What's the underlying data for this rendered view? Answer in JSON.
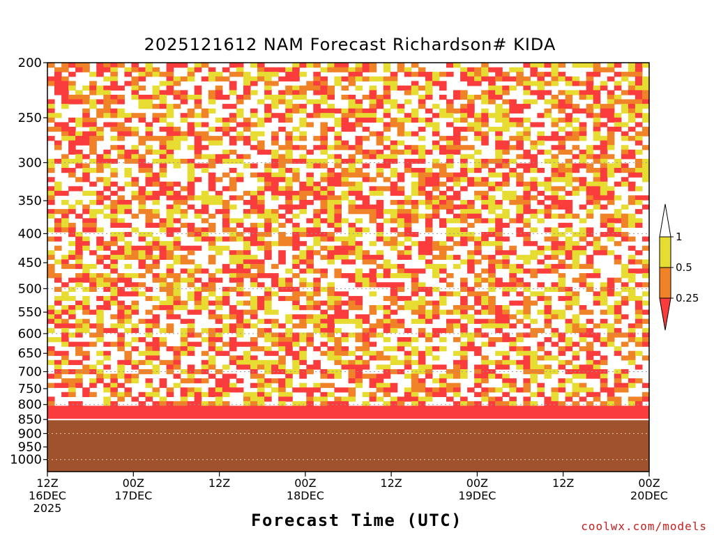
{
  "chart_data": {
    "type": "heatmap",
    "title": "2025121612 NAM Forecast Richardson# KIDA",
    "xlabel": "Forecast Time (UTC)",
    "ylabel": "",
    "credit": "coolwx.com/models",
    "y_axis": {
      "scale": "log-pressure",
      "range": [
        1050,
        200
      ],
      "ticks": [
        200,
        250,
        300,
        350,
        400,
        450,
        500,
        550,
        600,
        650,
        700,
        750,
        800,
        850,
        900,
        950,
        1000
      ],
      "grid_lines": [
        300,
        400,
        500,
        600,
        700,
        800,
        900,
        1000
      ]
    },
    "x_axis": {
      "range_hours": [
        0,
        84
      ],
      "ticks": [
        {
          "hour": 0,
          "lines": [
            "12Z",
            "16DEC",
            "2025"
          ]
        },
        {
          "hour": 12,
          "lines": [
            "00Z",
            "17DEC"
          ]
        },
        {
          "hour": 24,
          "lines": [
            "12Z"
          ]
        },
        {
          "hour": 36,
          "lines": [
            "00Z",
            "18DEC"
          ]
        },
        {
          "hour": 48,
          "lines": [
            "12Z"
          ]
        },
        {
          "hour": 60,
          "lines": [
            "00Z",
            "19DEC"
          ]
        },
        {
          "hour": 72,
          "lines": [
            "12Z"
          ]
        },
        {
          "hour": 84,
          "lines": [
            "00Z",
            "20DEC"
          ]
        }
      ]
    },
    "legend": {
      "placement": "right",
      "boundaries": [
        "1",
        "0.5",
        "0.25"
      ],
      "colors": {
        "gt1": "#ffffff",
        "0.5-1": "#e6dc32",
        "0.25-0.5": "#f08228",
        "lt0.25": "#fa3c3c"
      }
    },
    "ground_color": "#a0522d",
    "surface_pressure_hpa": 850
  }
}
